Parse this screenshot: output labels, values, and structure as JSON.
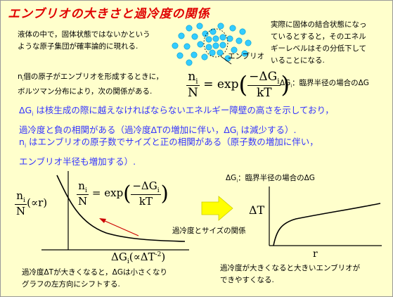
{
  "title": "エンブリオの大きさと過冷度の関係",
  "intro": {
    "left_line1": "液体の中で，固体状態ではないかという",
    "left_line2": "ような原子集団が確率論的に現れる.",
    "embryo_label": "エンブリオ",
    "right_line1": "実際に固体の結合状態になっ",
    "right_line2": "ているとすると，そのエネル",
    "right_line3": "ギーレベルはその分低下して",
    "right_line4": "いることになる."
  },
  "formula_intro": {
    "line1_n": "n",
    "line1_i": "i",
    "line1_rest": "個の原子がエンブリオを形成するときに，",
    "line2": "ボルツマン分布により，次の関係がある."
  },
  "formula": {
    "num_n": "n",
    "num_i": "i",
    "den": "N",
    "eq": "= exp",
    "inner_num": "−ΔG",
    "inner_sub": "i",
    "inner_den": "kT"
  },
  "formula_note": {
    "dg": "ΔG",
    "sub": "i",
    "text": "：臨界半径の場合のΔG"
  },
  "blue_text": {
    "p1_line1_pre": "ΔG",
    "p1_line1_sub": "i",
    "p1_line1_rest": " は核生成の際に越えなければならないエネルギー障壁の高さを示しており，",
    "p1_line2_pre": "過冷度と負の相関がある（過冷度ΔTの増加に伴い，ΔG",
    "p1_line2_sub": "i",
    "p1_line2_rest": " は減少する）.",
    "p2_line1_pre": "n",
    "p2_line1_sub": "i",
    "p2_line1_rest": " はエンブリオの原子数でサイズと正の相関がある（原子数の増加に伴い，",
    "p2_line2": "エンブリオ半径も増加する）."
  },
  "left_graph": {
    "ylabel_num": "n",
    "ylabel_sub": "i",
    "ylabel_den": "N",
    "ylabel_prop": "(∝r)",
    "eq_num": "n",
    "eq_sub": "i",
    "eq_den": "N",
    "eq_mid": "= exp",
    "eq_inner_num": "−ΔG",
    "eq_inner_sub": "i",
    "eq_inner_den": "kT",
    "xlabel_pre": "ΔG",
    "xlabel_sub": "i",
    "xlabel_prop": "(∝ΔT",
    "xlabel_sup": "-2",
    "xlabel_close": ")",
    "caption_line1": "過冷度ΔTが大きくなると，ΔGは小さくなり",
    "caption_line2": "グラフの左方向にシフトする."
  },
  "arrow_label": "過冷度とサイズの関係",
  "right_graph": {
    "top_label_pre": "ΔG",
    "top_label_sub": "i",
    "top_label_rest": "：臨界半径の場合のΔG",
    "ylabel": "ΔT",
    "xlabel": "r",
    "caption_line1": "過冷度が大きくなると大きいエンブリオが",
    "caption_line2": "できやすくなる."
  },
  "colors": {
    "background": "#ffffcc",
    "title": "#e00000",
    "blue_text": "#3333ff",
    "atoms": "#33ccff",
    "arrow": "#ffff00",
    "red_arrow": "#cc0000"
  }
}
